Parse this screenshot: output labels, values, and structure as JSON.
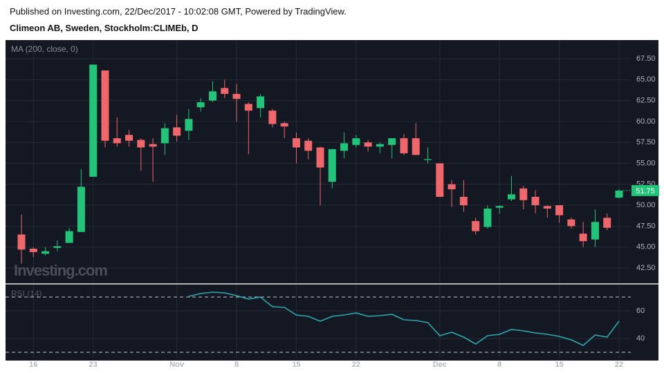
{
  "header": {
    "published": "Published on Investing.com, 22/Dec/2017 - 10:02:08 GMT, Powered by TradingView.",
    "symbol": "Climeon AB, Sweden, Stockholm:CLIMEb, D"
  },
  "chart_data": [
    {
      "type": "candlestick",
      "label": "MA (200, close, 0)",
      "watermark": "Investing.com",
      "categories": [
        null,
        "16",
        null,
        null,
        null,
        null,
        "23",
        null,
        null,
        null,
        null,
        null,
        null,
        "Nov",
        null,
        null,
        null,
        null,
        "8",
        null,
        null,
        null,
        null,
        "15",
        null,
        null,
        null,
        null,
        "22",
        null,
        null,
        null,
        null,
        null,
        null,
        "Dec",
        null,
        null,
        null,
        null,
        "8",
        null,
        null,
        null,
        null,
        "15",
        null,
        null,
        null,
        null,
        "22"
      ],
      "open": [
        46.5,
        44.8,
        44.2,
        44.9,
        45.5,
        46.8,
        53.4,
        66.1,
        58.0,
        58.4,
        57.8,
        57.3,
        57.4,
        59.3,
        58.9,
        61.7,
        62.5,
        64.0,
        63.3,
        62.1,
        61.6,
        61.3,
        59.8,
        58.0,
        57.7,
        56.9,
        52.8,
        56.5,
        57.2,
        57.5,
        57.0,
        57.2,
        58.0,
        58.0,
        55.4,
        55.0,
        52.5,
        51.0,
        48.1,
        47.4,
        49.7,
        50.7,
        52.0,
        51.0,
        49.9,
        50.0,
        48.3,
        46.6,
        45.9,
        48.5,
        50.9
      ],
      "high": [
        48.9,
        45.0,
        45.0,
        45.8,
        47.3,
        54.3,
        66.8,
        66.1,
        60.5,
        59.0,
        58.0,
        58.0,
        59.8,
        60.8,
        61.5,
        62.8,
        64.8,
        65.0,
        64.5,
        62.3,
        63.3,
        61.5,
        60.0,
        58.7,
        58.0,
        57.0,
        56.7,
        58.7,
        58.4,
        57.8,
        57.5,
        58.0,
        58.5,
        59.8,
        56.9,
        55.0,
        53.0,
        53.0,
        48.5,
        50.0,
        50.0,
        53.5,
        52.3,
        51.8,
        50.0,
        50.0,
        48.5,
        48.0,
        49.5,
        49.0,
        51.9
      ],
      "low": [
        43.0,
        43.8,
        44.0,
        44.5,
        45.5,
        46.8,
        53.4,
        56.9,
        57.0,
        57.0,
        54.1,
        52.8,
        56.0,
        57.6,
        57.8,
        61.2,
        62.3,
        62.8,
        60.0,
        56.1,
        60.5,
        59.3,
        58.0,
        55.0,
        55.5,
        50.0,
        52.0,
        55.6,
        56.9,
        56.4,
        56.2,
        55.6,
        56.0,
        56.0,
        55.0,
        51.0,
        49.8,
        49.2,
        46.5,
        47.2,
        49.0,
        50.5,
        49.5,
        49.0,
        48.5,
        47.9,
        47.2,
        45.0,
        45.0,
        47.0,
        50.8
      ],
      "close": [
        44.7,
        44.4,
        44.5,
        45.1,
        46.9,
        52.2,
        66.8,
        57.7,
        57.4,
        57.7,
        56.9,
        57.0,
        59.2,
        58.3,
        60.3,
        62.3,
        63.6,
        63.3,
        62.7,
        61.3,
        63.0,
        59.7,
        59.4,
        56.9,
        56.5,
        54.5,
        56.7,
        57.4,
        58.0,
        57.0,
        57.3,
        58.0,
        56.2,
        56.0,
        55.5,
        51.0,
        51.9,
        50.0,
        46.9,
        49.6,
        49.9,
        51.3,
        50.6,
        50.0,
        49.6,
        48.8,
        47.5,
        45.7,
        48.0,
        47.3,
        51.75
      ],
      "up_color": "#22c47a",
      "down_color": "#f0676b",
      "ylim": [
        40.68,
        69.73
      ],
      "yticks": [
        {
          "value": 42.5,
          "label": "42.50"
        },
        {
          "value": 45,
          "label": "45.00"
        },
        {
          "value": 47.5,
          "label": "47.50"
        },
        {
          "value": 50,
          "label": "50.00"
        },
        {
          "value": 52.5,
          "label": "52.50"
        },
        {
          "value": 55,
          "label": "55.00"
        },
        {
          "value": 57.5,
          "label": "57.50"
        },
        {
          "value": 60,
          "label": "60.00"
        },
        {
          "value": 62.5,
          "label": "62.50"
        },
        {
          "value": 65,
          "label": "65.00"
        },
        {
          "value": 67.5,
          "label": "67.50"
        }
      ],
      "grid": true
    },
    {
      "type": "line",
      "label": "RSI (14)",
      "color": "#2aa9b0",
      "values": [
        null,
        null,
        null,
        null,
        null,
        null,
        null,
        null,
        null,
        null,
        null,
        null,
        null,
        null,
        70.5,
        72.5,
        73.5,
        73,
        71,
        68.5,
        70,
        63,
        62.5,
        57,
        56,
        52.5,
        56,
        57,
        58.5,
        56,
        56.5,
        57.5,
        53.5,
        53,
        51.5,
        42,
        44.5,
        41,
        36,
        42,
        43,
        46.5,
        45.5,
        44,
        43,
        41.5,
        39,
        35,
        42.5,
        41,
        52.5
      ],
      "ylim": [
        26,
        79
      ],
      "yticks": [
        40,
        60
      ],
      "levels": [
        70,
        30
      ],
      "grid": true
    }
  ]
}
